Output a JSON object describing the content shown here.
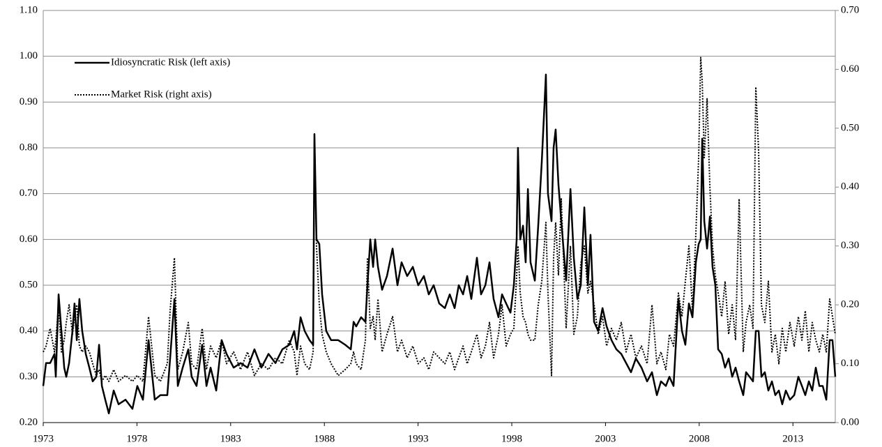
{
  "chart_data": {
    "type": "line",
    "x": [
      1973,
      1973.15,
      1973.37,
      1973.6,
      1973.67,
      1973.82,
      1973.97,
      1974.12,
      1974.23,
      1974.38,
      1974.56,
      1974.67,
      1974.79,
      1974.93,
      1975.08,
      1975.27,
      1975.46,
      1975.64,
      1975.83,
      1975.98,
      1976.13,
      1976.31,
      1976.5,
      1976.76,
      1977.02,
      1977.39,
      1977.76,
      1978.02,
      1978.32,
      1978.62,
      1978.95,
      1979.25,
      1979.62,
      1979.77,
      1980,
      1980.18,
      1980.44,
      1980.74,
      1980.92,
      1981.18,
      1981.48,
      1981.71,
      1981.93,
      1982.23,
      1982.52,
      1982.78,
      1983.16,
      1983.53,
      1983.9,
      1984.27,
      1984.64,
      1985.02,
      1985.39,
      1985.76,
      1986.13,
      1986.39,
      1986.54,
      1986.73,
      1986.95,
      1987.21,
      1987.4,
      1987.47,
      1987.58,
      1987.73,
      1987.88,
      1988.1,
      1988.36,
      1988.74,
      1989.11,
      1989.41,
      1989.56,
      1989.7,
      1989.96,
      1990.19,
      1990.3,
      1990.45,
      1990.6,
      1990.71,
      1990.86,
      1991.08,
      1991.34,
      1991.64,
      1991.9,
      1992.12,
      1992.42,
      1992.72,
      1993.01,
      1993.31,
      1993.57,
      1993.83,
      1994.13,
      1994.43,
      1994.69,
      1994.95,
      1995.17,
      1995.4,
      1995.62,
      1995.84,
      1996.14,
      1996.36,
      1996.59,
      1996.81,
      1997.03,
      1997.29,
      1997.48,
      1997.7,
      1997.93,
      1998.11,
      1998.26,
      1998.33,
      1998.45,
      1998.6,
      1998.74,
      1998.86,
      1999,
      1999.23,
      1999.41,
      1999.6,
      1999.82,
      1999.93,
      2000.12,
      2000.23,
      2000.34,
      2000.49,
      2000.64,
      2000.9,
      2001.13,
      2001.31,
      2001.5,
      2001.68,
      2001.87,
      2002.06,
      2002.2,
      2002.39,
      2002.61,
      2002.84,
      2003.06,
      2003.32,
      2003.58,
      2003.84,
      2004.1,
      2004.36,
      2004.62,
      2004.92,
      2005.22,
      2005.48,
      2005.74,
      2005.96,
      2006.22,
      2006.41,
      2006.63,
      2006.89,
      2007.08,
      2007.26,
      2007.45,
      2007.64,
      2007.82,
      2007.97,
      2008.08,
      2008.16,
      2008.27,
      2008.42,
      2008.57,
      2008.71,
      2008.86,
      2009.01,
      2009.2,
      2009.38,
      2009.57,
      2009.76,
      2009.94,
      2010.13,
      2010.35,
      2010.5,
      2010.69,
      2010.87,
      2011.02,
      2011.17,
      2011.32,
      2011.5,
      2011.69,
      2011.88,
      2012.06,
      2012.25,
      2012.43,
      2012.62,
      2012.84,
      2013.07,
      2013.29,
      2013.48,
      2013.66,
      2013.85,
      2014.03,
      2014.22,
      2014.41,
      2014.59,
      2014.78,
      2014.96,
      2015.11,
      2015.26
    ],
    "xlim": [
      1973,
      2015.26
    ],
    "xticks": [
      1973,
      1978,
      1983,
      1988,
      1993,
      1998,
      2003,
      2008,
      2013
    ],
    "ylim": [
      0.2,
      1.1
    ],
    "yticks": [
      {
        "value": 0.2,
        "label": "0.20"
      },
      {
        "value": 0.3,
        "label": "0.30"
      },
      {
        "value": 0.4,
        "label": "0.40"
      },
      {
        "value": 0.5,
        "label": "0.50"
      },
      {
        "value": 0.6,
        "label": "0.60"
      },
      {
        "value": 0.7,
        "label": "0.70"
      },
      {
        "value": 0.8,
        "label": "0.80"
      },
      {
        "value": 0.9,
        "label": "0.90"
      },
      {
        "value": 1.0,
        "label": "1.00"
      },
      {
        "value": 1.1,
        "label": "1.10"
      }
    ],
    "y2lim": [
      0,
      0.7
    ],
    "y2ticks": [
      {
        "value": 0,
        "label": "0.00"
      },
      {
        "value": 0.1,
        "label": "0.10"
      },
      {
        "value": 0.2,
        "label": "0.20"
      },
      {
        "value": 0.3,
        "label": "0.30"
      },
      {
        "value": 0.4,
        "label": "0.40"
      },
      {
        "value": 0.5,
        "label": "0.50"
      },
      {
        "value": 0.6,
        "label": "0.60"
      },
      {
        "value": 0.7,
        "label": "0.70"
      }
    ],
    "grid": true,
    "legend": "upper left",
    "series": [
      {
        "name": "Idiosyncratic Risk (left axis)",
        "color": "#000000",
        "linestyle": "solid",
        "values": [
          0.28,
          0.33,
          0.33,
          0.35,
          0.3,
          0.48,
          0.4,
          0.32,
          0.3,
          0.33,
          0.4,
          0.46,
          0.38,
          0.47,
          0.4,
          0.35,
          0.32,
          0.29,
          0.3,
          0.37,
          0.28,
          0.25,
          0.22,
          0.27,
          0.24,
          0.25,
          0.23,
          0.28,
          0.25,
          0.38,
          0.25,
          0.26,
          0.26,
          0.34,
          0.47,
          0.28,
          0.32,
          0.36,
          0.3,
          0.28,
          0.37,
          0.28,
          0.32,
          0.27,
          0.38,
          0.35,
          0.32,
          0.33,
          0.32,
          0.36,
          0.32,
          0.35,
          0.33,
          0.36,
          0.37,
          0.4,
          0.36,
          0.43,
          0.4,
          0.38,
          0.37,
          0.83,
          0.6,
          0.59,
          0.48,
          0.4,
          0.38,
          0.38,
          0.37,
          0.36,
          0.42,
          0.41,
          0.43,
          0.42,
          0.5,
          0.6,
          0.54,
          0.6,
          0.54,
          0.49,
          0.52,
          0.58,
          0.5,
          0.55,
          0.52,
          0.54,
          0.5,
          0.52,
          0.48,
          0.5,
          0.46,
          0.45,
          0.48,
          0.45,
          0.5,
          0.48,
          0.52,
          0.47,
          0.56,
          0.48,
          0.5,
          0.55,
          0.47,
          0.43,
          0.48,
          0.46,
          0.44,
          0.5,
          0.6,
          0.8,
          0.6,
          0.63,
          0.55,
          0.71,
          0.55,
          0.51,
          0.63,
          0.77,
          0.96,
          0.7,
          0.64,
          0.8,
          0.84,
          0.72,
          0.64,
          0.51,
          0.71,
          0.56,
          0.47,
          0.5,
          0.67,
          0.5,
          0.61,
          0.42,
          0.4,
          0.45,
          0.41,
          0.38,
          0.36,
          0.35,
          0.33,
          0.31,
          0.34,
          0.32,
          0.29,
          0.31,
          0.26,
          0.29,
          0.28,
          0.3,
          0.28,
          0.47,
          0.4,
          0.37,
          0.46,
          0.43,
          0.55,
          0.59,
          0.6,
          0.82,
          0.64,
          0.58,
          0.65,
          0.54,
          0.5,
          0.36,
          0.35,
          0.32,
          0.34,
          0.3,
          0.32,
          0.29,
          0.26,
          0.31,
          0.3,
          0.29,
          0.4,
          0.4,
          0.3,
          0.31,
          0.27,
          0.29,
          0.26,
          0.27,
          0.24,
          0.27,
          0.25,
          0.26,
          0.3,
          0.28,
          0.26,
          0.29,
          0.27,
          0.32,
          0.28,
          0.28,
          0.25,
          0.38,
          0.38,
          0.3
        ]
      },
      {
        "name": "Market Risk (right axis)",
        "color": "#000000",
        "linestyle": "dotted",
        "axis": "y2",
        "values": [
          0.12,
          0.13,
          0.16,
          0.12,
          0.14,
          0.2,
          0.12,
          0.14,
          0.17,
          0.2,
          0.15,
          0.18,
          0.2,
          0.13,
          0.12,
          0.13,
          0.12,
          0.1,
          0.08,
          0.09,
          0.07,
          0.08,
          0.07,
          0.09,
          0.07,
          0.08,
          0.07,
          0.08,
          0.07,
          0.18,
          0.08,
          0.07,
          0.1,
          0.19,
          0.28,
          0.09,
          0.12,
          0.17,
          0.1,
          0.09,
          0.16,
          0.09,
          0.13,
          0.11,
          0.14,
          0.1,
          0.12,
          0.09,
          0.12,
          0.08,
          0.1,
          0.09,
          0.11,
          0.1,
          0.14,
          0.12,
          0.08,
          0.13,
          0.1,
          0.09,
          0.12,
          0.49,
          0.3,
          0.2,
          0.15,
          0.12,
          0.1,
          0.08,
          0.09,
          0.1,
          0.12,
          0.1,
          0.09,
          0.14,
          0.28,
          0.16,
          0.18,
          0.14,
          0.21,
          0.12,
          0.15,
          0.18,
          0.12,
          0.14,
          0.11,
          0.13,
          0.1,
          0.11,
          0.09,
          0.12,
          0.11,
          0.1,
          0.12,
          0.09,
          0.11,
          0.13,
          0.1,
          0.12,
          0.15,
          0.11,
          0.13,
          0.17,
          0.11,
          0.15,
          0.2,
          0.13,
          0.15,
          0.16,
          0.25,
          0.3,
          0.22,
          0.18,
          0.17,
          0.15,
          0.14,
          0.14,
          0.2,
          0.24,
          0.34,
          0.22,
          0.08,
          0.28,
          0.34,
          0.25,
          0.38,
          0.16,
          0.3,
          0.15,
          0.18,
          0.27,
          0.3,
          0.22,
          0.24,
          0.2,
          0.15,
          0.18,
          0.13,
          0.16,
          0.14,
          0.17,
          0.12,
          0.15,
          0.11,
          0.13,
          0.1,
          0.2,
          0.1,
          0.12,
          0.09,
          0.15,
          0.13,
          0.22,
          0.18,
          0.24,
          0.3,
          0.19,
          0.32,
          0.45,
          0.62,
          0.58,
          0.45,
          0.55,
          0.4,
          0.3,
          0.25,
          0.22,
          0.18,
          0.24,
          0.15,
          0.2,
          0.14,
          0.38,
          0.12,
          0.17,
          0.2,
          0.16,
          0.57,
          0.46,
          0.2,
          0.17,
          0.24,
          0.12,
          0.15,
          0.1,
          0.16,
          0.12,
          0.17,
          0.13,
          0.18,
          0.14,
          0.19,
          0.12,
          0.17,
          0.14,
          0.12,
          0.15,
          0.12,
          0.21,
          0.18,
          0.15
        ]
      }
    ]
  }
}
